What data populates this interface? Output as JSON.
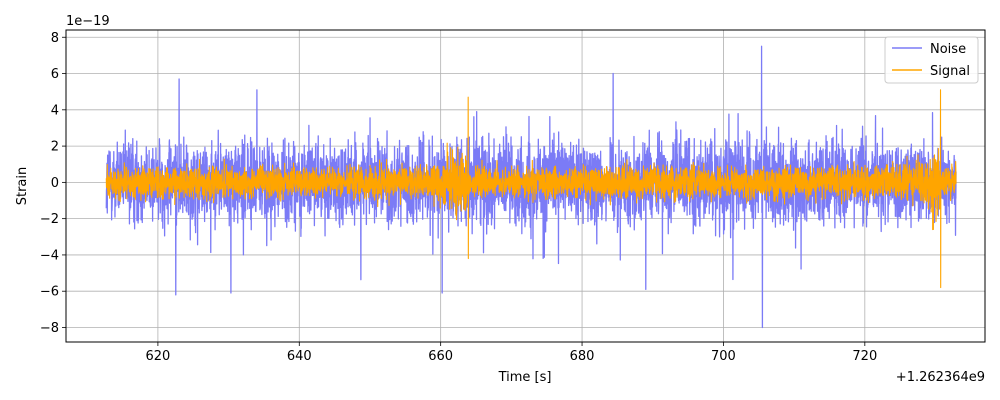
{
  "chart_data": {
    "type": "line",
    "xlabel": "Time [s]",
    "ylabel": "Strain",
    "x_offset_label": "+1.262364e9",
    "y_scale_label": "1e−19",
    "xlim": [
      607,
      737
    ],
    "ylim": [
      -8.8,
      8.4
    ],
    "x_ticks": [
      620,
      640,
      660,
      680,
      700,
      720
    ],
    "x_tick_labels": [
      "620",
      "640",
      "660",
      "680",
      "700",
      "720"
    ],
    "y_ticks": [
      -8,
      -6,
      -4,
      -2,
      0,
      2,
      4,
      6,
      8
    ],
    "y_tick_labels": [
      "−8",
      "−6",
      "−4",
      "−2",
      "0",
      "2",
      "4",
      "6",
      "8"
    ],
    "grid": true,
    "legend_position": "upper-right",
    "series": [
      {
        "name": "Noise",
        "color": "#7b7bf6",
        "x_range": [
          612.7,
          732.9
        ],
        "typical_envelope": [
          -2.5,
          2.5
        ],
        "peaks": [
          {
            "x": 622.5,
            "y": -6.2
          },
          {
            "x": 623.0,
            "y": 5.7
          },
          {
            "x": 630.3,
            "y": -6.1
          },
          {
            "x": 634.0,
            "y": 5.1
          },
          {
            "x": 660.2,
            "y": -6.1
          },
          {
            "x": 684.4,
            "y": 6.0
          },
          {
            "x": 689.0,
            "y": -5.9
          },
          {
            "x": 705.4,
            "y": 7.5
          },
          {
            "x": 705.5,
            "y": -8.0
          }
        ]
      },
      {
        "name": "Signal",
        "color": "#ffa500",
        "x_range": [
          612.7,
          732.9
        ],
        "typical_envelope": [
          -1.0,
          1.0
        ],
        "peaks": [
          {
            "x": 663.9,
            "y": 4.7
          },
          {
            "x": 663.9,
            "y": -4.2
          },
          {
            "x": 730.7,
            "y": 5.1
          },
          {
            "x": 730.7,
            "y": -5.8
          }
        ]
      }
    ]
  }
}
